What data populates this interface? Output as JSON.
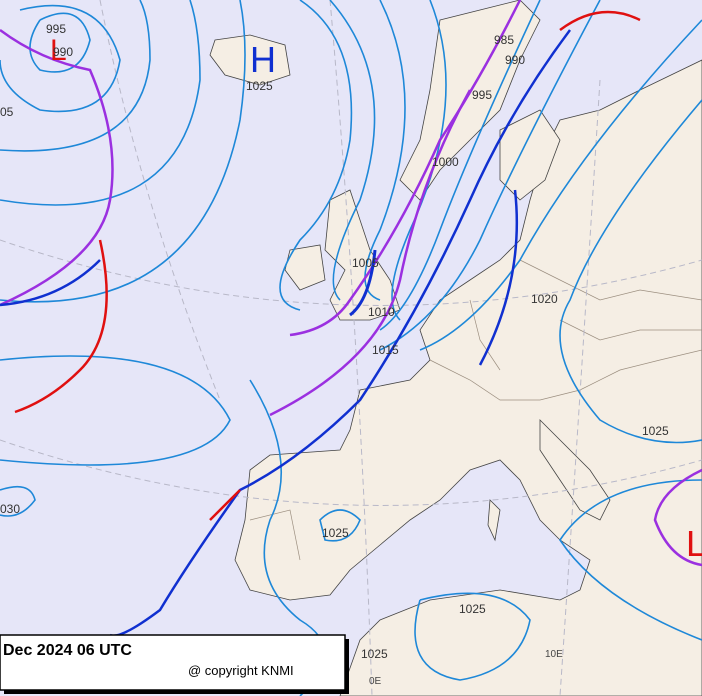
{
  "caption": {
    "date": "Dec 2024 06 UTC",
    "copyright": "@ copyright KNMI"
  },
  "centers": [
    {
      "letter": "L"
    },
    {
      "letter": "H"
    },
    {
      "letter": "L"
    }
  ],
  "isobar_labels": [
    "995",
    "990",
    "1025",
    "05",
    "985",
    "990",
    "995",
    "1000",
    "1005",
    "1010",
    "1015",
    "1020",
    "1025",
    "030",
    "1025",
    "1025",
    "1025"
  ],
  "longitude_labels": [
    "0E",
    "10E"
  ]
}
